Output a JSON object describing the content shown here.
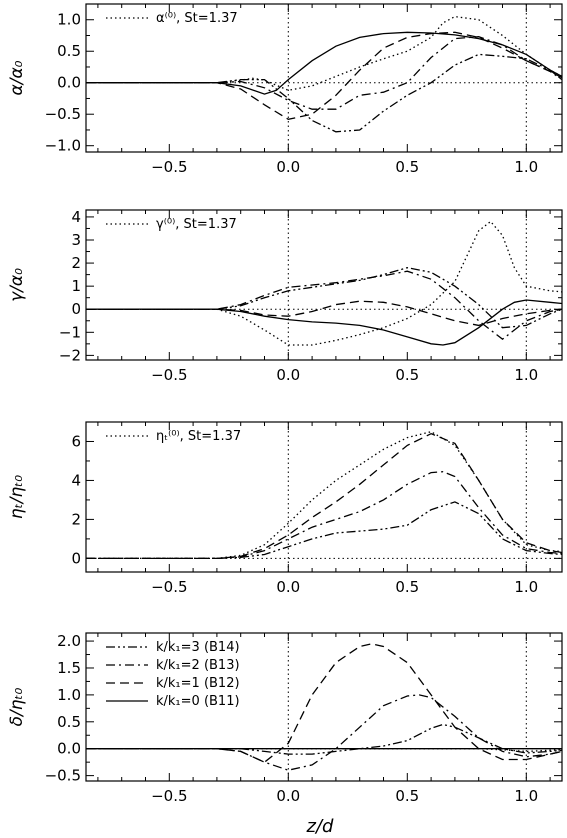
{
  "chart_data": [
    {
      "type": "line",
      "ylabel": "α/α₀",
      "xlim": [
        -0.85,
        1.15
      ],
      "ylim": [
        -1.1,
        1.25
      ],
      "yticks": [
        -1.0,
        -0.5,
        0.0,
        0.5,
        1.0
      ],
      "ytick_labels": [
        "−1.0",
        "−0.5",
        "0.0",
        "0.5",
        "1.0"
      ],
      "xticks": [
        -0.5,
        0.0,
        0.5,
        1.0
      ],
      "xtick_labels": [
        "−0.5",
        "0.0",
        "0.5",
        "1.0"
      ],
      "legend": [
        {
          "label": "α⁽⁰⁾, St=1.37",
          "style": "dotted"
        }
      ],
      "legend_position": "top-left",
      "series": [
        {
          "style": "solid",
          "x": [
            -0.85,
            -0.3,
            -0.2,
            -0.1,
            -0.05,
            0.0,
            0.1,
            0.2,
            0.3,
            0.4,
            0.5,
            0.6,
            0.7,
            0.8,
            0.9,
            1.0,
            1.1,
            1.15
          ],
          "y": [
            0,
            0,
            -0.05,
            -0.18,
            -0.12,
            0.05,
            0.35,
            0.58,
            0.72,
            0.78,
            0.8,
            0.79,
            0.76,
            0.7,
            0.6,
            0.45,
            0.2,
            0.1
          ]
        },
        {
          "style": "dashed",
          "x": [
            -0.85,
            -0.3,
            -0.2,
            -0.1,
            0.0,
            0.1,
            0.2,
            0.3,
            0.4,
            0.5,
            0.6,
            0.7,
            0.8,
            0.9,
            1.0,
            1.1,
            1.15
          ],
          "y": [
            0,
            0,
            -0.1,
            -0.35,
            -0.58,
            -0.5,
            -0.2,
            0.2,
            0.55,
            0.72,
            0.78,
            0.8,
            0.72,
            0.55,
            0.35,
            0.18,
            0.08
          ]
        },
        {
          "style": "dash-dot",
          "x": [
            -0.85,
            -0.3,
            -0.2,
            -0.1,
            0.0,
            0.1,
            0.2,
            0.3,
            0.4,
            0.5,
            0.6,
            0.7,
            0.8,
            0.9,
            1.0,
            1.1,
            1.15
          ],
          "y": [
            0,
            0,
            0.02,
            -0.08,
            -0.28,
            -0.42,
            -0.42,
            -0.2,
            -0.15,
            0.0,
            0.4,
            0.7,
            0.73,
            0.6,
            0.35,
            0.18,
            0.05
          ]
        },
        {
          "style": "dash-dot-dot",
          "x": [
            -0.85,
            -0.3,
            -0.2,
            -0.1,
            0.0,
            0.1,
            0.2,
            0.3,
            0.4,
            0.5,
            0.6,
            0.7,
            0.8,
            0.9,
            1.0,
            1.1,
            1.15
          ],
          "y": [
            0,
            0,
            0.05,
            0.05,
            -0.25,
            -0.6,
            -0.78,
            -0.75,
            -0.45,
            -0.2,
            0.0,
            0.28,
            0.45,
            0.42,
            0.38,
            0.2,
            0.05
          ]
        },
        {
          "style": "dotted",
          "x": [
            -0.85,
            -0.3,
            -0.2,
            -0.15,
            -0.1,
            0.0,
            0.1,
            0.2,
            0.3,
            0.4,
            0.5,
            0.6,
            0.65,
            0.7,
            0.8,
            0.9,
            1.0,
            1.1,
            1.15
          ],
          "y": [
            0,
            0,
            0.04,
            0.07,
            0.04,
            -0.12,
            -0.05,
            0.1,
            0.25,
            0.38,
            0.5,
            0.72,
            0.95,
            1.05,
            1.0,
            0.75,
            0.45,
            0.2,
            0.1
          ]
        }
      ]
    },
    {
      "type": "line",
      "ylabel": "γ/α₀",
      "xlim": [
        -0.85,
        1.15
      ],
      "ylim": [
        -2.2,
        4.3
      ],
      "yticks": [
        -2,
        -1,
        0,
        1,
        2,
        3,
        4
      ],
      "ytick_labels": [
        "−2",
        "−1",
        "0",
        "1",
        "2",
        "3",
        "4"
      ],
      "xticks": [
        -0.5,
        0.0,
        0.5,
        1.0
      ],
      "xtick_labels": [
        "−0.5",
        "0.0",
        "0.5",
        "1.0"
      ],
      "legend": [
        {
          "label": "γ⁽⁰⁾, St=1.37",
          "style": "dotted"
        }
      ],
      "legend_position": "top-left",
      "series": [
        {
          "style": "solid",
          "x": [
            -0.85,
            -0.3,
            -0.2,
            -0.1,
            0.0,
            0.1,
            0.2,
            0.3,
            0.4,
            0.5,
            0.6,
            0.65,
            0.7,
            0.8,
            0.9,
            0.95,
            1.0,
            1.1,
            1.15
          ],
          "y": [
            0,
            0,
            -0.1,
            -0.3,
            -0.45,
            -0.55,
            -0.6,
            -0.7,
            -0.9,
            -1.2,
            -1.5,
            -1.55,
            -1.45,
            -0.8,
            0.0,
            0.3,
            0.4,
            0.3,
            0.25
          ]
        },
        {
          "style": "dashed",
          "x": [
            -0.85,
            -0.3,
            -0.2,
            -0.1,
            0.0,
            0.1,
            0.2,
            0.3,
            0.4,
            0.5,
            0.6,
            0.7,
            0.8,
            0.9,
            1.0,
            1.1,
            1.15
          ],
          "y": [
            0,
            0,
            -0.05,
            -0.25,
            -0.3,
            -0.1,
            0.2,
            0.35,
            0.3,
            0.1,
            -0.2,
            -0.5,
            -0.7,
            -0.4,
            -0.2,
            -0.05,
            0.0
          ]
        },
        {
          "style": "dash-dot",
          "x": [
            -0.85,
            -0.3,
            -0.2,
            -0.1,
            0.0,
            0.1,
            0.2,
            0.3,
            0.4,
            0.5,
            0.6,
            0.7,
            0.8,
            0.9,
            1.0,
            1.1,
            1.15
          ],
          "y": [
            0,
            0,
            0.2,
            0.6,
            0.95,
            1.05,
            1.15,
            1.3,
            1.45,
            1.65,
            1.3,
            0.5,
            -0.5,
            -1.3,
            -0.5,
            -0.1,
            0.0
          ]
        },
        {
          "style": "dash-dot-dot",
          "x": [
            -0.85,
            -0.3,
            -0.2,
            -0.1,
            0.0,
            0.1,
            0.2,
            0.3,
            0.4,
            0.5,
            0.6,
            0.7,
            0.8,
            0.9,
            1.0,
            1.1,
            1.15
          ],
          "y": [
            0,
            0,
            0.15,
            0.5,
            0.8,
            0.95,
            1.1,
            1.25,
            1.5,
            1.8,
            1.6,
            1.0,
            0.2,
            -0.8,
            -0.7,
            -0.2,
            0.0
          ]
        },
        {
          "style": "dotted",
          "x": [
            -0.85,
            -0.3,
            -0.2,
            -0.1,
            0.0,
            0.1,
            0.2,
            0.3,
            0.4,
            0.5,
            0.6,
            0.7,
            0.75,
            0.8,
            0.85,
            0.9,
            0.95,
            1.0,
            1.1,
            1.15
          ],
          "y": [
            0,
            0,
            -0.3,
            -0.9,
            -1.55,
            -1.55,
            -1.35,
            -1.1,
            -0.8,
            -0.4,
            0.2,
            1.2,
            2.3,
            3.4,
            3.8,
            3.2,
            1.8,
            1.0,
            0.8,
            0.75
          ]
        }
      ]
    },
    {
      "type": "line",
      "ylabel": "ηₜ/ηₜ₀",
      "xlim": [
        -0.85,
        1.15
      ],
      "ylim": [
        -0.7,
        7.0
      ],
      "yticks": [
        0,
        2,
        4,
        6
      ],
      "ytick_labels": [
        "0",
        "2",
        "4",
        "6"
      ],
      "xticks": [
        -0.5,
        0.0,
        0.5,
        1.0
      ],
      "xtick_labels": [
        "−0.5",
        "0.0",
        "0.5",
        "1.0"
      ],
      "legend": [
        {
          "label": "ηₜ⁽⁰⁾, St=1.37",
          "style": "dotted"
        }
      ],
      "legend_position": "top-left",
      "series": [
        {
          "style": "dashed",
          "x": [
            -0.85,
            -0.3,
            -0.2,
            -0.1,
            0.0,
            0.1,
            0.2,
            0.3,
            0.4,
            0.5,
            0.6,
            0.7,
            0.8,
            0.9,
            1.0,
            1.1,
            1.15
          ],
          "y": [
            0,
            0,
            0.1,
            0.5,
            1.2,
            2.1,
            2.9,
            3.8,
            4.8,
            5.8,
            6.4,
            5.9,
            4.0,
            2.0,
            0.8,
            0.4,
            0.3
          ]
        },
        {
          "style": "dash-dot",
          "x": [
            -0.85,
            -0.3,
            -0.2,
            -0.1,
            0.0,
            0.1,
            0.2,
            0.3,
            0.4,
            0.5,
            0.6,
            0.65,
            0.7,
            0.8,
            0.9,
            1.0,
            1.1,
            1.15
          ],
          "y": [
            0,
            0,
            0.08,
            0.4,
            1.0,
            1.6,
            2.0,
            2.4,
            3.0,
            3.8,
            4.4,
            4.45,
            4.2,
            2.6,
            1.2,
            0.5,
            0.3,
            0.25
          ]
        },
        {
          "style": "dash-dot-dot",
          "x": [
            -0.85,
            -0.3,
            -0.2,
            -0.1,
            0.0,
            0.1,
            0.2,
            0.3,
            0.4,
            0.5,
            0.6,
            0.7,
            0.8,
            0.9,
            1.0,
            1.1,
            1.15
          ],
          "y": [
            0,
            0,
            0.05,
            0.2,
            0.6,
            1.0,
            1.3,
            1.4,
            1.5,
            1.7,
            2.5,
            2.9,
            2.3,
            1.0,
            0.4,
            0.25,
            0.2
          ]
        },
        {
          "style": "dotted",
          "x": [
            -0.85,
            -0.3,
            -0.2,
            -0.1,
            0.0,
            0.1,
            0.2,
            0.3,
            0.4,
            0.5,
            0.6,
            0.7,
            0.8,
            0.9,
            1.0,
            1.1,
            1.15
          ],
          "y": [
            0,
            0,
            0.15,
            0.7,
            1.8,
            3.0,
            4.0,
            4.8,
            5.6,
            6.2,
            6.5,
            5.8,
            4.0,
            2.0,
            0.7,
            0.4,
            0.35
          ]
        }
      ]
    },
    {
      "type": "line",
      "ylabel": "δ/ηₜ₀",
      "xlabel": "z/d",
      "xlim": [
        -0.85,
        1.15
      ],
      "ylim": [
        -0.6,
        2.15
      ],
      "yticks": [
        -0.5,
        0.0,
        0.5,
        1.0,
        1.5,
        2.0
      ],
      "ytick_labels": [
        "−0.5",
        "0.0",
        "0.5",
        "1.0",
        "1.5",
        "2.0"
      ],
      "xticks": [
        -0.5,
        0.0,
        0.5,
        1.0
      ],
      "xtick_labels": [
        "−0.5",
        "0.0",
        "0.5",
        "1.0"
      ],
      "legend_position": "top-left",
      "legend": [
        {
          "label": "k/k₁=3 (B14)",
          "style": "dash-dot-dot"
        },
        {
          "label": "k/k₁=2 (B13)",
          "style": "dash-dot"
        },
        {
          "label": "k/k₁=1 (B12)",
          "style": "dashed"
        },
        {
          "label": "k/k₁=0 (B11)",
          "style": "solid"
        }
      ],
      "series": [
        {
          "style": "solid",
          "x": [
            -0.85,
            1.15
          ],
          "y": [
            0,
            0
          ]
        },
        {
          "style": "dashed",
          "x": [
            -0.85,
            -0.3,
            -0.2,
            -0.1,
            0.0,
            0.1,
            0.2,
            0.3,
            0.35,
            0.4,
            0.5,
            0.6,
            0.7,
            0.8,
            0.9,
            1.0,
            1.1,
            1.15
          ],
          "y": [
            0,
            0,
            -0.05,
            -0.25,
            0.1,
            1.0,
            1.6,
            1.9,
            1.95,
            1.9,
            1.6,
            1.0,
            0.4,
            0.0,
            -0.2,
            -0.2,
            -0.1,
            -0.05
          ]
        },
        {
          "style": "dash-dot",
          "x": [
            -0.85,
            -0.3,
            -0.2,
            -0.1,
            0.0,
            0.1,
            0.2,
            0.3,
            0.4,
            0.5,
            0.55,
            0.6,
            0.7,
            0.8,
            0.9,
            1.0,
            1.1,
            1.15
          ],
          "y": [
            0,
            0,
            -0.05,
            -0.25,
            -0.4,
            -0.3,
            0.0,
            0.4,
            0.8,
            0.98,
            1.0,
            0.95,
            0.6,
            0.2,
            -0.05,
            -0.15,
            -0.1,
            -0.05
          ]
        },
        {
          "style": "dash-dot-dot",
          "x": [
            -0.85,
            -0.3,
            -0.2,
            -0.1,
            0.0,
            0.1,
            0.2,
            0.3,
            0.4,
            0.5,
            0.6,
            0.65,
            0.7,
            0.8,
            0.9,
            1.0,
            1.1,
            1.15
          ],
          "y": [
            0,
            0,
            0,
            -0.05,
            -0.1,
            -0.1,
            -0.05,
            0.0,
            0.05,
            0.15,
            0.38,
            0.45,
            0.4,
            0.2,
            0.0,
            -0.08,
            -0.05,
            -0.03
          ]
        },
        {
          "style": "dotted",
          "x": [
            -0.85,
            -0.3,
            0.0,
            0.3,
            0.6,
            0.8,
            0.9,
            1.0,
            1.1,
            1.15
          ],
          "y": [
            0,
            0,
            0,
            0,
            0,
            0,
            -0.02,
            -0.05,
            -0.03,
            -0.02
          ]
        }
      ]
    }
  ]
}
